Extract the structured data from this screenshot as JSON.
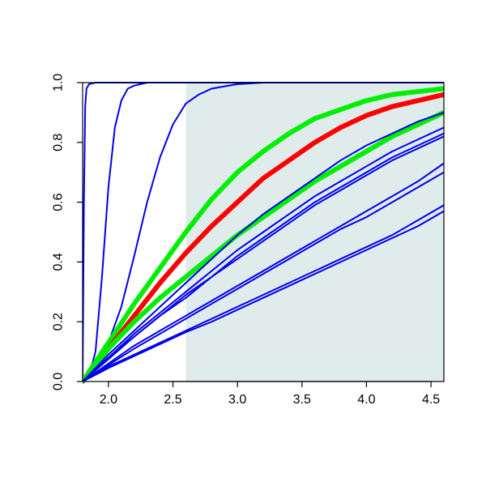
{
  "chart_data": {
    "type": "line",
    "title": "",
    "xlabel": "",
    "ylabel": "",
    "xlim": [
      1.8,
      4.6
    ],
    "ylim": [
      0.0,
      1.0
    ],
    "x_ticks": [
      "2.0",
      "2.5",
      "3.0",
      "3.5",
      "4.0",
      "4.5"
    ],
    "x_tick_values": [
      2.0,
      2.5,
      3.0,
      3.5,
      4.0,
      4.5
    ],
    "y_ticks": [
      "0.0",
      "0.2",
      "0.4",
      "0.6",
      "0.8",
      "1.0"
    ],
    "y_tick_values": [
      0.0,
      0.2,
      0.4,
      0.6,
      0.8,
      1.0
    ],
    "grid": false,
    "legend": "none",
    "shaded_region": {
      "x_from": 2.6,
      "x_to": 4.6,
      "color": "#e0ecec"
    },
    "colors": {
      "blue": "#0000ee",
      "red": "#ff0000",
      "green": "#00ee00",
      "shade": "#e0ecec"
    },
    "series": [
      {
        "color": "#0000ee",
        "width": 2,
        "x": [
          1.8,
          1.81,
          1.82,
          1.83,
          1.85,
          1.9,
          2.0,
          4.6
        ],
        "y": [
          0.0,
          0.6,
          0.92,
          0.98,
          0.995,
          1.0,
          1.0,
          1.0
        ]
      },
      {
        "color": "#0000ee",
        "width": 2,
        "x": [
          1.8,
          1.85,
          1.9,
          1.95,
          2.0,
          2.05,
          2.1,
          2.15,
          2.2,
          2.3,
          2.5,
          4.6
        ],
        "y": [
          0.0,
          0.02,
          0.1,
          0.35,
          0.65,
          0.85,
          0.94,
          0.98,
          0.99,
          1.0,
          1.0,
          1.0
        ]
      },
      {
        "color": "#0000ee",
        "width": 2,
        "x": [
          1.8,
          1.9,
          2.0,
          2.1,
          2.2,
          2.3,
          2.4,
          2.5,
          2.6,
          2.7,
          2.8,
          3.0,
          3.2,
          4.6
        ],
        "y": [
          0.0,
          0.05,
          0.13,
          0.25,
          0.42,
          0.6,
          0.75,
          0.86,
          0.93,
          0.96,
          0.98,
          0.995,
          1.0,
          1.0
        ]
      },
      {
        "color": "#00ee00",
        "width": 6,
        "x": [
          1.8,
          2.0,
          2.2,
          2.4,
          2.6,
          2.8,
          3.0,
          3.2,
          3.4,
          3.6,
          3.8,
          4.0,
          4.2,
          4.4,
          4.6
        ],
        "y": [
          0.0,
          0.13,
          0.26,
          0.38,
          0.5,
          0.61,
          0.7,
          0.77,
          0.83,
          0.88,
          0.91,
          0.94,
          0.96,
          0.97,
          0.98
        ]
      },
      {
        "color": "#ff0000",
        "width": 6,
        "x": [
          1.8,
          2.0,
          2.2,
          2.4,
          2.6,
          2.8,
          3.0,
          3.2,
          3.4,
          3.6,
          3.8,
          4.0,
          4.2,
          4.4,
          4.6
        ],
        "y": [
          0.0,
          0.11,
          0.22,
          0.33,
          0.43,
          0.52,
          0.6,
          0.68,
          0.74,
          0.8,
          0.85,
          0.89,
          0.92,
          0.94,
          0.96
        ]
      },
      {
        "color": "#00ee00",
        "width": 6,
        "x": [
          1.8,
          2.0,
          2.2,
          2.4,
          2.6,
          2.8,
          3.0,
          3.2,
          3.4,
          3.6,
          3.8,
          4.0,
          4.2,
          4.4,
          4.6
        ],
        "y": [
          0.0,
          0.11,
          0.2,
          0.28,
          0.35,
          0.42,
          0.49,
          0.55,
          0.61,
          0.67,
          0.72,
          0.77,
          0.82,
          0.86,
          0.9
        ]
      },
      {
        "color": "#0000ee",
        "width": 2,
        "x": [
          1.8,
          2.0,
          2.2,
          2.4,
          2.6,
          2.8,
          3.0,
          3.2,
          3.4,
          3.6,
          3.8,
          4.0,
          4.2,
          4.4,
          4.6
        ],
        "y": [
          0.0,
          0.09,
          0.17,
          0.25,
          0.33,
          0.41,
          0.49,
          0.56,
          0.62,
          0.68,
          0.74,
          0.79,
          0.83,
          0.87,
          0.9
        ]
      },
      {
        "color": "#0000ee",
        "width": 2,
        "x": [
          1.8,
          2.0,
          2.2,
          2.4,
          2.6,
          2.8,
          3.0,
          3.2,
          3.4,
          3.6,
          3.8,
          4.0,
          4.2,
          4.4,
          4.6
        ],
        "y": [
          0.0,
          0.08,
          0.16,
          0.23,
          0.3,
          0.37,
          0.44,
          0.5,
          0.56,
          0.62,
          0.67,
          0.72,
          0.77,
          0.81,
          0.85
        ]
      },
      {
        "color": "#0000ee",
        "width": 2,
        "x": [
          1.8,
          2.0,
          2.2,
          2.4,
          2.6,
          2.8,
          3.0,
          3.2,
          3.4,
          3.6,
          3.8,
          4.0,
          4.2,
          4.4,
          4.6
        ],
        "y": [
          0.0,
          0.08,
          0.15,
          0.22,
          0.29,
          0.35,
          0.42,
          0.48,
          0.54,
          0.6,
          0.65,
          0.7,
          0.75,
          0.79,
          0.83
        ]
      },
      {
        "color": "#0000ee",
        "width": 2,
        "x": [
          1.8,
          2.0,
          2.2,
          2.4,
          2.6,
          2.8,
          3.0,
          3.2,
          3.4,
          3.6,
          3.8,
          4.0,
          4.2,
          4.4,
          4.6
        ],
        "y": [
          0.0,
          0.075,
          0.15,
          0.22,
          0.28,
          0.35,
          0.41,
          0.47,
          0.53,
          0.59,
          0.64,
          0.69,
          0.74,
          0.78,
          0.82
        ]
      },
      {
        "color": "#0000ee",
        "width": 2,
        "x": [
          1.8,
          2.0,
          2.2,
          2.4,
          2.6,
          2.8,
          3.0,
          3.2,
          3.4,
          3.6,
          3.8,
          4.0,
          4.2,
          4.4,
          4.6
        ],
        "y": [
          0.0,
          0.06,
          0.12,
          0.17,
          0.22,
          0.27,
          0.32,
          0.37,
          0.42,
          0.47,
          0.52,
          0.57,
          0.62,
          0.67,
          0.73
        ]
      },
      {
        "color": "#0000ee",
        "width": 2,
        "x": [
          1.8,
          2.0,
          2.2,
          2.4,
          2.6,
          2.8,
          3.0,
          3.2,
          3.4,
          3.6,
          3.8,
          4.0,
          4.2,
          4.4,
          4.6
        ],
        "y": [
          0.0,
          0.055,
          0.11,
          0.16,
          0.21,
          0.26,
          0.31,
          0.36,
          0.41,
          0.46,
          0.51,
          0.55,
          0.6,
          0.65,
          0.7
        ]
      },
      {
        "color": "#0000ee",
        "width": 2,
        "x": [
          1.8,
          2.0,
          2.2,
          2.4,
          2.6,
          2.8,
          3.0,
          3.2,
          3.4,
          3.6,
          3.8,
          4.0,
          4.2,
          4.4,
          4.6
        ],
        "y": [
          0.0,
          0.05,
          0.09,
          0.13,
          0.17,
          0.21,
          0.25,
          0.29,
          0.33,
          0.37,
          0.41,
          0.45,
          0.49,
          0.54,
          0.59
        ]
      },
      {
        "color": "#0000ee",
        "width": 2,
        "x": [
          1.8,
          2.0,
          2.2,
          2.4,
          2.6,
          2.8,
          3.0,
          3.2,
          3.4,
          3.6,
          3.8,
          4.0,
          4.2,
          4.4,
          4.6
        ],
        "y": [
          0.0,
          0.045,
          0.085,
          0.125,
          0.165,
          0.2,
          0.24,
          0.28,
          0.32,
          0.36,
          0.4,
          0.44,
          0.48,
          0.52,
          0.57
        ]
      }
    ]
  }
}
